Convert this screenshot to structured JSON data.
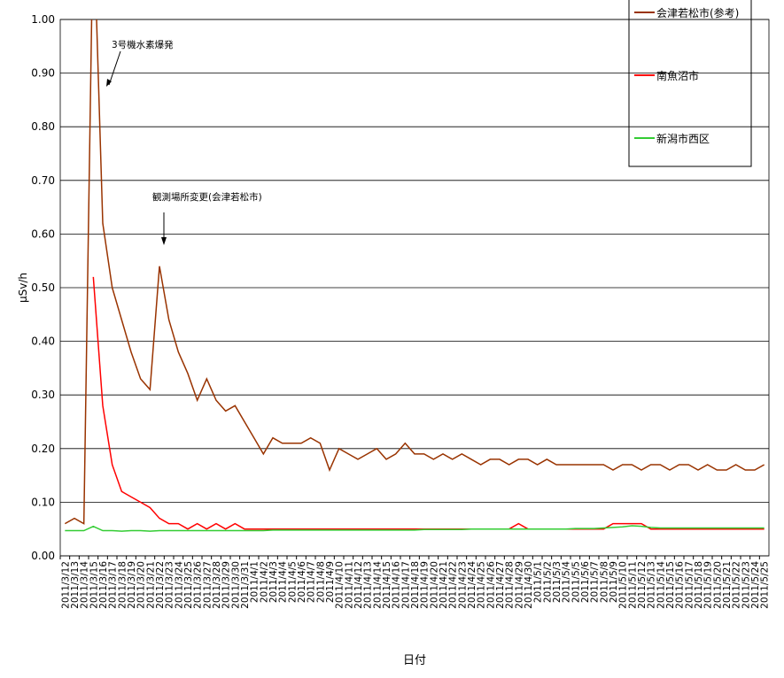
{
  "chart_data": {
    "type": "line",
    "x_label": "日付",
    "y_label": "μSv/h",
    "categories": [
      "2011/3/12",
      "2011/3/13",
      "2011/3/14",
      "2011/3/15",
      "2011/3/16",
      "2011/3/17",
      "2011/3/18",
      "2011/3/19",
      "2011/3/20",
      "2011/3/21",
      "2011/3/22",
      "2011/3/23",
      "2011/3/24",
      "2011/3/25",
      "2011/3/26",
      "2011/3/27",
      "2011/3/28",
      "2011/3/29",
      "2011/3/30",
      "2011/3/31",
      "2011/4/1",
      "2011/4/2",
      "2011/4/3",
      "2011/4/4",
      "2011/4/5",
      "2011/4/6",
      "2011/4/7",
      "2011/4/8",
      "2011/4/9",
      "2011/4/10",
      "2011/4/11",
      "2011/4/12",
      "2011/4/13",
      "2011/4/14",
      "2011/4/15",
      "2011/4/16",
      "2011/4/17",
      "2011/4/18",
      "2011/4/19",
      "2011/4/20",
      "2011/4/21",
      "2011/4/22",
      "2011/4/23",
      "2011/4/24",
      "2011/4/25",
      "2011/4/26",
      "2011/4/27",
      "2011/4/28",
      "2011/4/29",
      "2011/4/30",
      "2011/5/1",
      "2011/5/2",
      "2011/5/3",
      "2011/5/4",
      "2011/5/5",
      "2011/5/6",
      "2011/5/7",
      "2011/5/8",
      "2011/5/9",
      "2011/5/10",
      "2011/5/11",
      "2011/5/12",
      "2011/5/13",
      "2011/5/14",
      "2011/5/15",
      "2011/5/16",
      "2011/5/17",
      "2011/5/18",
      "2011/5/19",
      "2011/5/20",
      "2011/5/21",
      "2011/5/22",
      "2011/5/23",
      "2011/5/24",
      "2011/5/25"
    ],
    "series": [
      {
        "name": "会津若松市(参考)",
        "color": "#993300",
        "values": [
          0.06,
          0.07,
          0.06,
          1.2,
          0.62,
          0.5,
          0.44,
          0.38,
          0.33,
          0.31,
          0.54,
          0.44,
          0.38,
          0.34,
          0.29,
          0.33,
          0.29,
          0.27,
          0.28,
          0.25,
          0.22,
          0.19,
          0.22,
          0.21,
          0.21,
          0.21,
          0.22,
          0.21,
          0.16,
          0.2,
          0.19,
          0.18,
          0.19,
          0.2,
          0.18,
          0.19,
          0.21,
          0.19,
          0.19,
          0.18,
          0.19,
          0.18,
          0.19,
          0.18,
          0.17,
          0.18,
          0.18,
          0.17,
          0.18,
          0.18,
          0.17,
          0.18,
          0.17,
          0.17,
          0.17,
          0.17,
          0.17,
          0.17,
          0.16,
          0.17,
          0.17,
          0.16,
          0.17,
          0.17,
          0.16,
          0.17,
          0.17,
          0.16,
          0.17,
          0.16,
          0.16,
          0.17,
          0.16,
          0.16,
          0.17
        ]
      },
      {
        "name": "南魚沼市",
        "color": "#ff0000",
        "values": [
          null,
          null,
          null,
          0.52,
          0.28,
          0.17,
          0.12,
          0.11,
          0.1,
          0.09,
          0.07,
          0.06,
          0.06,
          0.05,
          0.06,
          0.05,
          0.06,
          0.05,
          0.06,
          0.05,
          0.05,
          0.05,
          0.05,
          0.05,
          0.05,
          0.05,
          0.05,
          0.05,
          0.05,
          0.05,
          0.05,
          0.05,
          0.05,
          0.05,
          0.05,
          0.05,
          0.05,
          0.05,
          0.05,
          0.05,
          0.05,
          0.05,
          0.05,
          0.05,
          0.05,
          0.05,
          0.05,
          0.05,
          0.06,
          0.05,
          0.05,
          0.05,
          0.05,
          0.05,
          0.05,
          0.05,
          0.05,
          0.05,
          0.06,
          0.06,
          0.06,
          0.06,
          0.05,
          0.05,
          0.05,
          0.05,
          0.05,
          0.05,
          0.05,
          0.05,
          0.05,
          0.05,
          0.05,
          0.05,
          0.05
        ]
      },
      {
        "name": "新潟市西区",
        "color": "#33cc33",
        "values": [
          0.047,
          0.047,
          0.047,
          0.055,
          0.047,
          0.047,
          0.046,
          0.047,
          0.047,
          0.046,
          0.047,
          0.047,
          0.047,
          0.047,
          0.047,
          0.047,
          0.047,
          0.047,
          0.047,
          0.047,
          0.047,
          0.047,
          0.048,
          0.048,
          0.048,
          0.048,
          0.048,
          0.048,
          0.048,
          0.048,
          0.048,
          0.048,
          0.048,
          0.048,
          0.048,
          0.048,
          0.048,
          0.048,
          0.049,
          0.049,
          0.049,
          0.049,
          0.049,
          0.05,
          0.05,
          0.05,
          0.05,
          0.05,
          0.05,
          0.05,
          0.05,
          0.05,
          0.05,
          0.05,
          0.051,
          0.051,
          0.051,
          0.052,
          0.053,
          0.054,
          0.056,
          0.055,
          0.053,
          0.052,
          0.052,
          0.052,
          0.052,
          0.052,
          0.052,
          0.052,
          0.052,
          0.052,
          0.052,
          0.052,
          0.052
        ]
      }
    ],
    "ylim": [
      0,
      1
    ],
    "yticks": [
      {
        "value": 0,
        "label": "0.00"
      },
      {
        "value": 0.1,
        "label": "0.10"
      },
      {
        "value": 0.2,
        "label": "0.20"
      },
      {
        "value": 0.3,
        "label": "0.30"
      },
      {
        "value": 0.4,
        "label": "0.40"
      },
      {
        "value": 0.5,
        "label": "0.50"
      },
      {
        "value": 0.6,
        "label": "0.60"
      },
      {
        "value": 0.7,
        "label": "0.70"
      },
      {
        "value": 0.8,
        "label": "0.80"
      },
      {
        "value": 0.9,
        "label": "0.90"
      },
      {
        "value": 1,
        "label": "1.00"
      }
    ],
    "grid": true,
    "legend_position": "top-right",
    "annotations": [
      "3号機水素爆発",
      "観測場所変更(会津若松市)"
    ]
  }
}
